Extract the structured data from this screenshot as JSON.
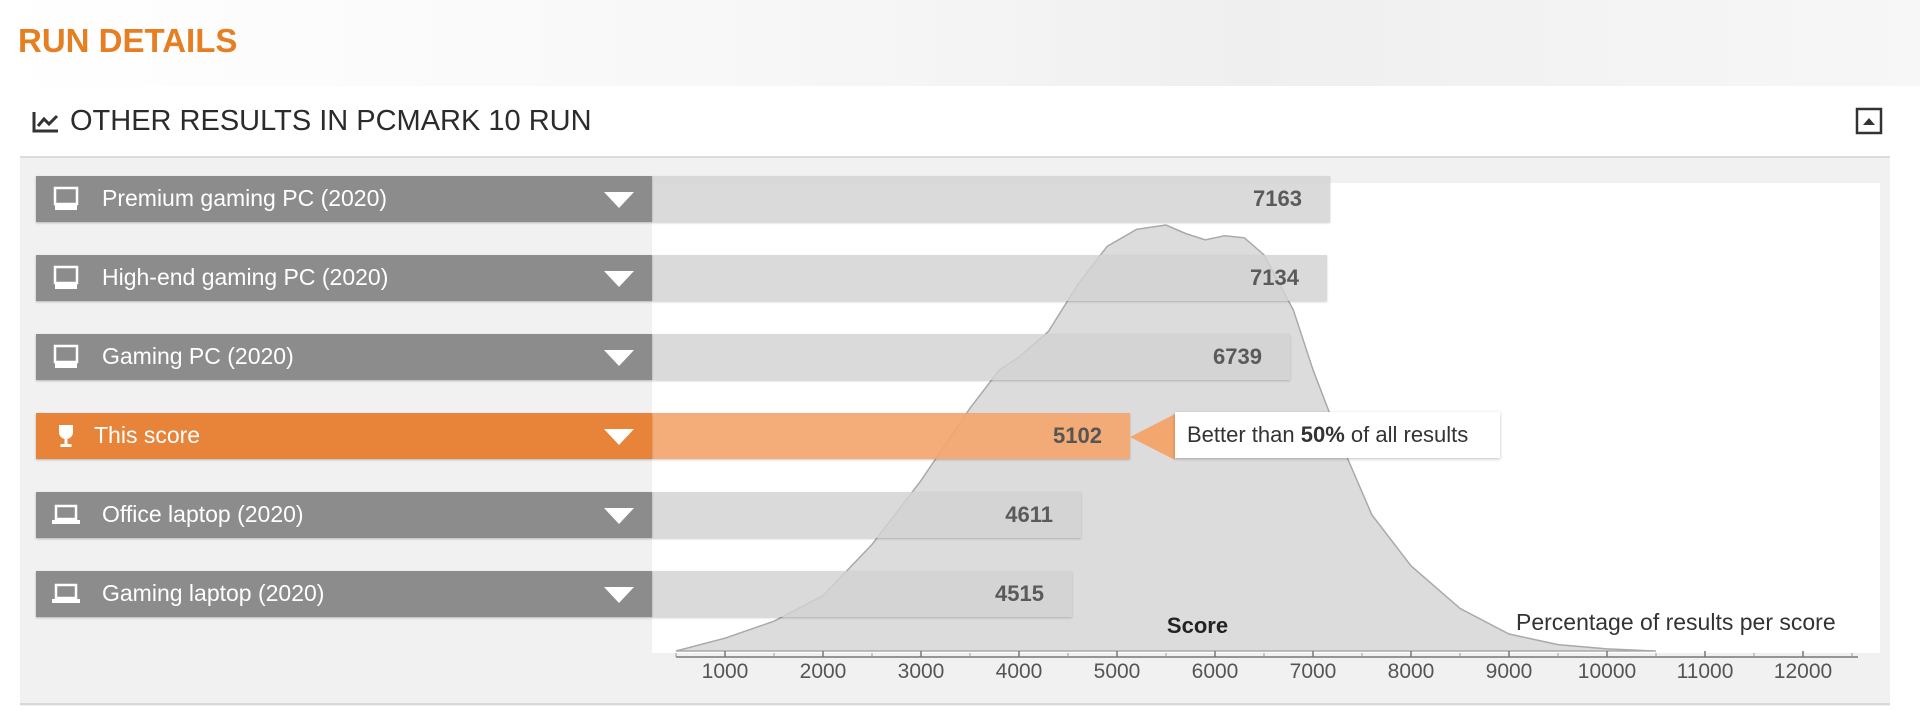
{
  "page": {
    "section_title": "RUN DETAILS",
    "panel_title": "OTHER RESULTS IN PCMARK 10 RUN",
    "accent_color": "#e67e22"
  },
  "rows": [
    {
      "label": "Premium gaming PC (2020)",
      "score": "7163",
      "icon": "desktop-icon",
      "current": false
    },
    {
      "label": "High-end gaming PC (2020)",
      "score": "7134",
      "icon": "desktop-icon",
      "current": false
    },
    {
      "label": "Gaming PC (2020)",
      "score": "6739",
      "icon": "desktop-icon",
      "current": false
    },
    {
      "label": "This score",
      "score": "5102",
      "icon": "trophy-icon",
      "current": true
    },
    {
      "label": "Office laptop (2020)",
      "score": "4611",
      "icon": "laptop-icon",
      "current": false
    },
    {
      "label": "Gaming laptop (2020)",
      "score": "4515",
      "icon": "laptop-icon",
      "current": false
    }
  ],
  "callout": {
    "prefix": "Better than ",
    "percent": "50%",
    "suffix": " of all results"
  },
  "chart_data": {
    "type": "area",
    "xlabel": "Score",
    "legend": "Percentage of results per score",
    "x_ticks": [
      "1000",
      "2000",
      "3000",
      "4000",
      "5000",
      "6000",
      "7000",
      "8000",
      "9000",
      "10000",
      "11000",
      "12000"
    ],
    "xlim": [
      500,
      12500
    ],
    "distribution": [
      {
        "x": 500,
        "y": 0.0
      },
      {
        "x": 1000,
        "y": 0.03
      },
      {
        "x": 1500,
        "y": 0.07
      },
      {
        "x": 2000,
        "y": 0.13
      },
      {
        "x": 2500,
        "y": 0.25
      },
      {
        "x": 3000,
        "y": 0.4
      },
      {
        "x": 3500,
        "y": 0.57
      },
      {
        "x": 3800,
        "y": 0.66
      },
      {
        "x": 4000,
        "y": 0.69
      },
      {
        "x": 4300,
        "y": 0.75
      },
      {
        "x": 4600,
        "y": 0.86
      },
      {
        "x": 4900,
        "y": 0.95
      },
      {
        "x": 5200,
        "y": 0.99
      },
      {
        "x": 5500,
        "y": 1.0
      },
      {
        "x": 5700,
        "y": 0.98
      },
      {
        "x": 5900,
        "y": 0.965
      },
      {
        "x": 6100,
        "y": 0.975
      },
      {
        "x": 6300,
        "y": 0.97
      },
      {
        "x": 6500,
        "y": 0.93
      },
      {
        "x": 6800,
        "y": 0.8
      },
      {
        "x": 7000,
        "y": 0.66
      },
      {
        "x": 7300,
        "y": 0.48
      },
      {
        "x": 7600,
        "y": 0.32
      },
      {
        "x": 8000,
        "y": 0.2
      },
      {
        "x": 8500,
        "y": 0.1
      },
      {
        "x": 9000,
        "y": 0.04
      },
      {
        "x": 9500,
        "y": 0.015
      },
      {
        "x": 10000,
        "y": 0.005
      },
      {
        "x": 10500,
        "y": 0.0
      }
    ]
  }
}
